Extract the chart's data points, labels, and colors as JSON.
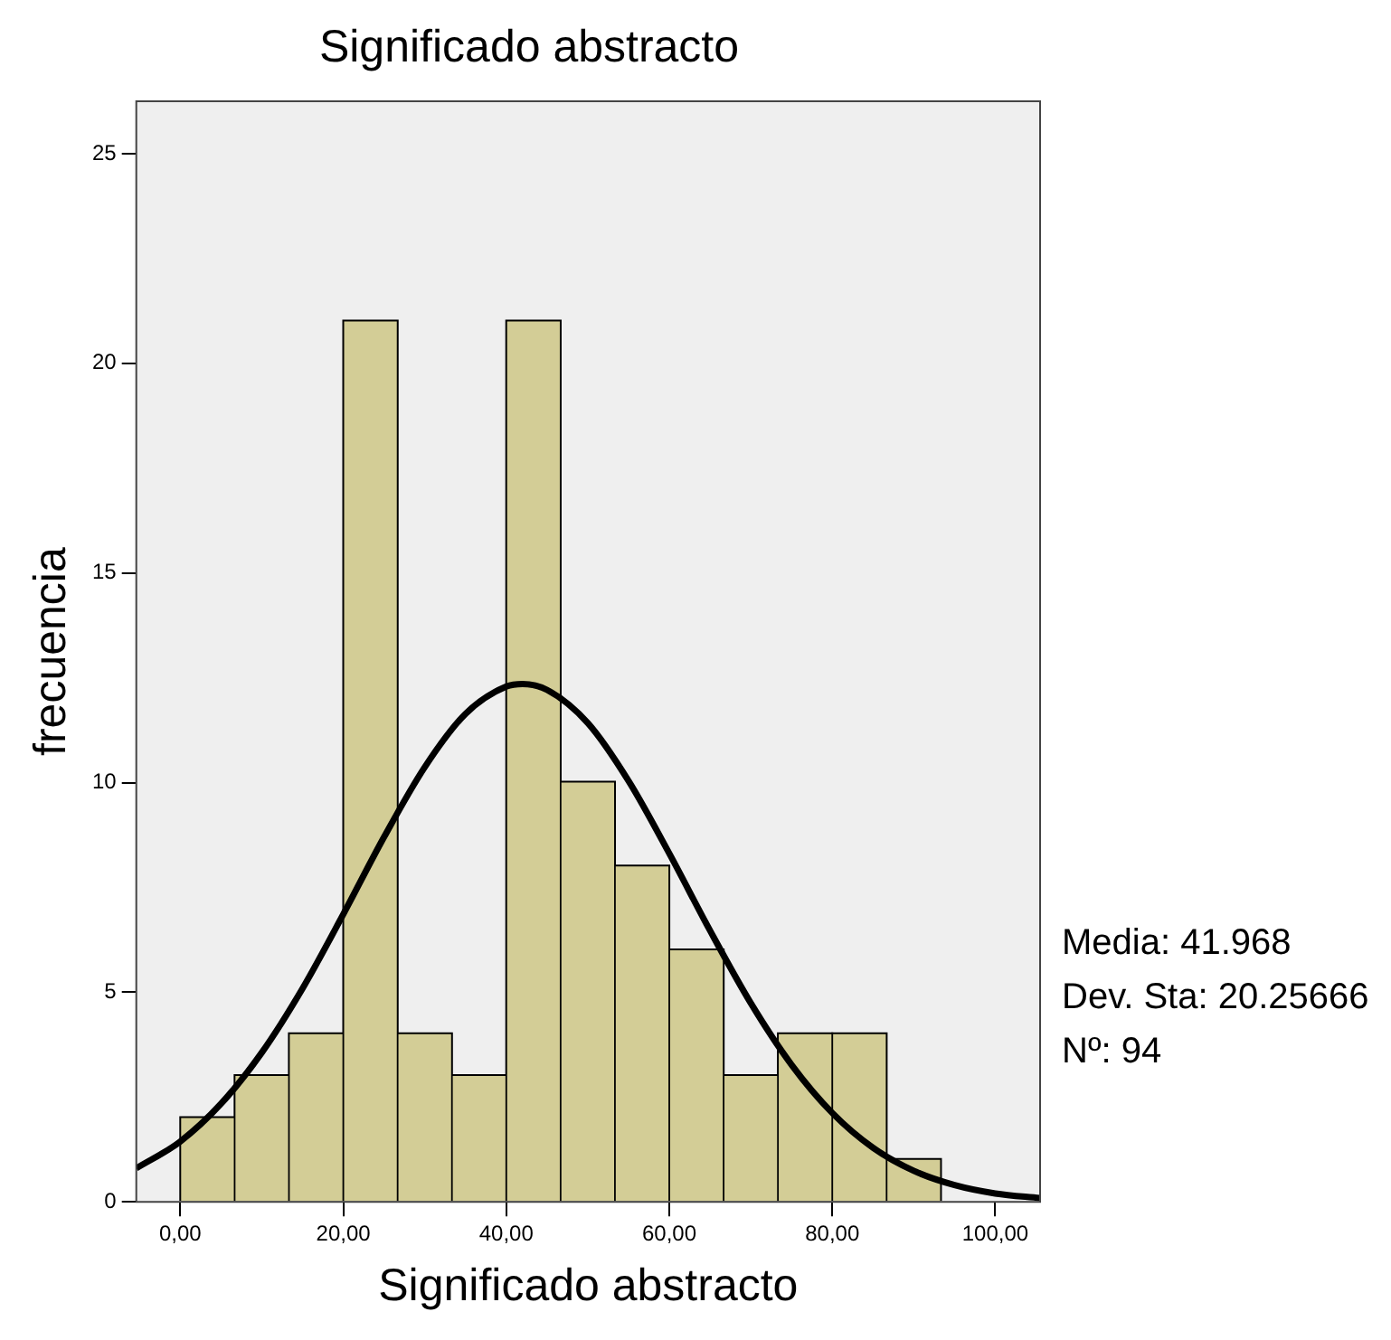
{
  "chart_data": {
    "type": "histogram",
    "title": "Significado abstracto",
    "xlabel": "Significado abstracto",
    "ylabel": "frecuencia",
    "bins": [
      0,
      6.67,
      13.33,
      20,
      26.67,
      33.33,
      40,
      46.67,
      53.33,
      60,
      66.67,
      73.33,
      80,
      86.67,
      93.33
    ],
    "values": [
      2,
      3,
      4,
      21,
      4,
      3,
      21,
      10,
      8,
      6,
      3,
      4,
      4,
      1
    ],
    "color": "#d3cd96",
    "series": [
      {
        "type": "line",
        "color": "#000000",
        "x": [
          -5.4,
          0,
          5,
          10,
          15,
          20,
          25,
          30,
          35,
          40,
          42,
          45,
          50,
          55,
          60,
          65,
          70,
          75,
          80,
          85,
          90,
          95,
          100,
          105.5
        ],
        "values": [
          0.8,
          1.44,
          2.34,
          3.56,
          5.09,
          6.86,
          8.7,
          10.37,
          11.64,
          12.29,
          12.35,
          12.21,
          11.42,
          10.04,
          8.31,
          6.47,
          4.74,
          3.27,
          2.12,
          1.29,
          0.74,
          0.4,
          0.2,
          0.09
        ]
      }
    ],
    "marker": "none",
    "xlim": [
      -5.4,
      105.5
    ],
    "xticks": [
      {
        "value": 0,
        "label": "0,00"
      },
      {
        "value": 20,
        "label": "20,00"
      },
      {
        "value": 40,
        "label": "40,00"
      },
      {
        "value": 60,
        "label": "60,00"
      },
      {
        "value": 80,
        "label": "80,00"
      },
      {
        "value": 100,
        "label": "100,00"
      }
    ],
    "ylim": [
      0,
      26.25
    ],
    "yticks": [
      0,
      5,
      10,
      15,
      20,
      25
    ],
    "grid": false,
    "legend": false,
    "annotations": [
      "Media: 41.968",
      "Dev. Sta: 20.25666",
      "Nº: 94"
    ]
  }
}
